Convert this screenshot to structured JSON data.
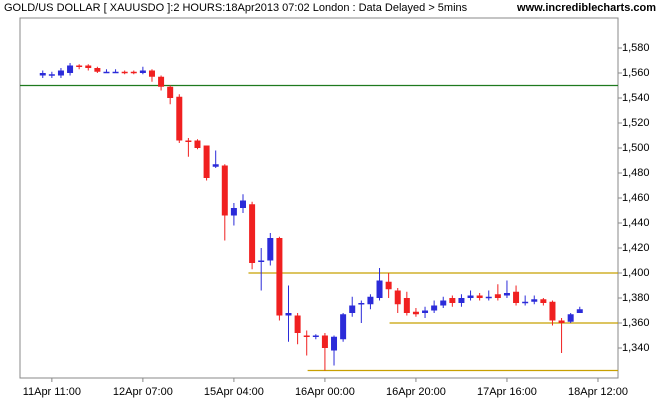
{
  "chart_data": {
    "type": "candlestick",
    "title": "GOLD/US DOLLAR [ XAUUSDO ]:2 HOURS:18Apr2013 07:02  London : Data Delayed > 5mins",
    "source": "www.incrediblecharts.com",
    "up_color": "#2b2bd9",
    "down_color": "#f02020",
    "open": [
      1558,
      1558,
      1558,
      1560,
      1566,
      1566,
      1564,
      1561,
      1561,
      1561,
      1561,
      1560,
      1562,
      1557,
      1549,
      1541,
      1506,
      1506,
      1502,
      1485,
      1486,
      1446,
      1452,
      1455,
      1410,
      1410,
      1428,
      1366,
      1366,
      1350,
      1349,
      1350,
      1338,
      1347,
      1368,
      1376,
      1375,
      1380,
      1393,
      1386,
      1380,
      1369,
      1368,
      1370,
      1374,
      1380,
      1376,
      1380,
      1382,
      1380,
      1383,
      1382,
      1385,
      1377,
      1377,
      1379,
      1377,
      1362,
      1361,
      1368
    ],
    "high": [
      1562,
      1561,
      1564,
      1568,
      1567,
      1567,
      1565,
      1563,
      1563,
      1562,
      1562,
      1565,
      1563,
      1558,
      1550,
      1543,
      1508,
      1507,
      1502,
      1498,
      1487,
      1456,
      1463,
      1457,
      1420,
      1432,
      1429,
      1390,
      1368,
      1354,
      1351,
      1352,
      1350,
      1368,
      1381,
      1378,
      1383,
      1404,
      1400,
      1388,
      1385,
      1372,
      1373,
      1378,
      1381,
      1382,
      1383,
      1386,
      1384,
      1386,
      1391,
      1394,
      1390,
      1382,
      1382,
      1380,
      1378,
      1364,
      1368,
      1373
    ],
    "low": [
      1556,
      1556,
      1556,
      1558,
      1563,
      1562,
      1560,
      1560,
      1560,
      1559,
      1559,
      1559,
      1553,
      1546,
      1535,
      1504,
      1493,
      1499,
      1474,
      1484,
      1426,
      1438,
      1448,
      1403,
      1386,
      1406,
      1362,
      1345,
      1343,
      1334,
      1347,
      1322,
      1326,
      1345,
      1365,
      1360,
      1371,
      1378,
      1380,
      1368,
      1366,
      1365,
      1364,
      1368,
      1372,
      1373,
      1373,
      1378,
      1378,
      1378,
      1378,
      1380,
      1374,
      1374,
      1375,
      1374,
      1358,
      1336,
      1360,
      1368
    ],
    "close": [
      1560,
      1559,
      1562,
      1566,
      1565,
      1564,
      1561,
      1561,
      1561,
      1560,
      1560,
      1562,
      1557,
      1549,
      1540,
      1506,
      1505,
      1500,
      1476,
      1487,
      1446,
      1452,
      1458,
      1408,
      1410,
      1428,
      1366,
      1368,
      1352,
      1349,
      1350,
      1340,
      1349,
      1367,
      1374,
      1376,
      1381,
      1394,
      1387,
      1375,
      1368,
      1367,
      1370,
      1374,
      1378,
      1376,
      1380,
      1382,
      1380,
      1381,
      1380,
      1384,
      1376,
      1377,
      1379,
      1376,
      1362,
      1360,
      1367,
      1371
    ],
    "xlim": [
      -2.5,
      63.2
    ],
    "xticks": [
      {
        "value": 1,
        "label": "11Apr 11:00"
      },
      {
        "value": 11,
        "label": "12Apr 07:00"
      },
      {
        "value": 21,
        "label": "15Apr 04:00"
      },
      {
        "value": 31,
        "label": "16Apr 00:00"
      },
      {
        "value": 41,
        "label": "16Apr 20:00"
      },
      {
        "value": 51,
        "label": "17Apr 16:00"
      },
      {
        "value": 61,
        "label": "18Apr 12:00"
      }
    ],
    "ylim": [
      1316,
      1604
    ],
    "yticks": [
      {
        "value": 1340,
        "label": "1,340"
      },
      {
        "value": 1360,
        "label": "1,360"
      },
      {
        "value": 1380,
        "label": "1,380"
      },
      {
        "value": 1400,
        "label": "1,400"
      },
      {
        "value": 1420,
        "label": "1,420"
      },
      {
        "value": 1440,
        "label": "1,440"
      },
      {
        "value": 1460,
        "label": "1,460"
      },
      {
        "value": 1480,
        "label": "1,480"
      },
      {
        "value": 1500,
        "label": "1,500"
      },
      {
        "value": 1520,
        "label": "1,520"
      },
      {
        "value": 1540,
        "label": "1,540"
      },
      {
        "value": 1560,
        "label": "1,560"
      },
      {
        "value": 1580,
        "label": "1,580"
      }
    ],
    "lines": [
      {
        "value": 1550,
        "from": -2.5,
        "color": "#1e7a1e"
      },
      {
        "value": 1400,
        "from": 22.6,
        "color": "#c8a000"
      },
      {
        "value": 1360,
        "from": 38.1,
        "color": "#c8a000"
      },
      {
        "value": 1322,
        "from": 29.1,
        "color": "#c8a000"
      }
    ]
  }
}
